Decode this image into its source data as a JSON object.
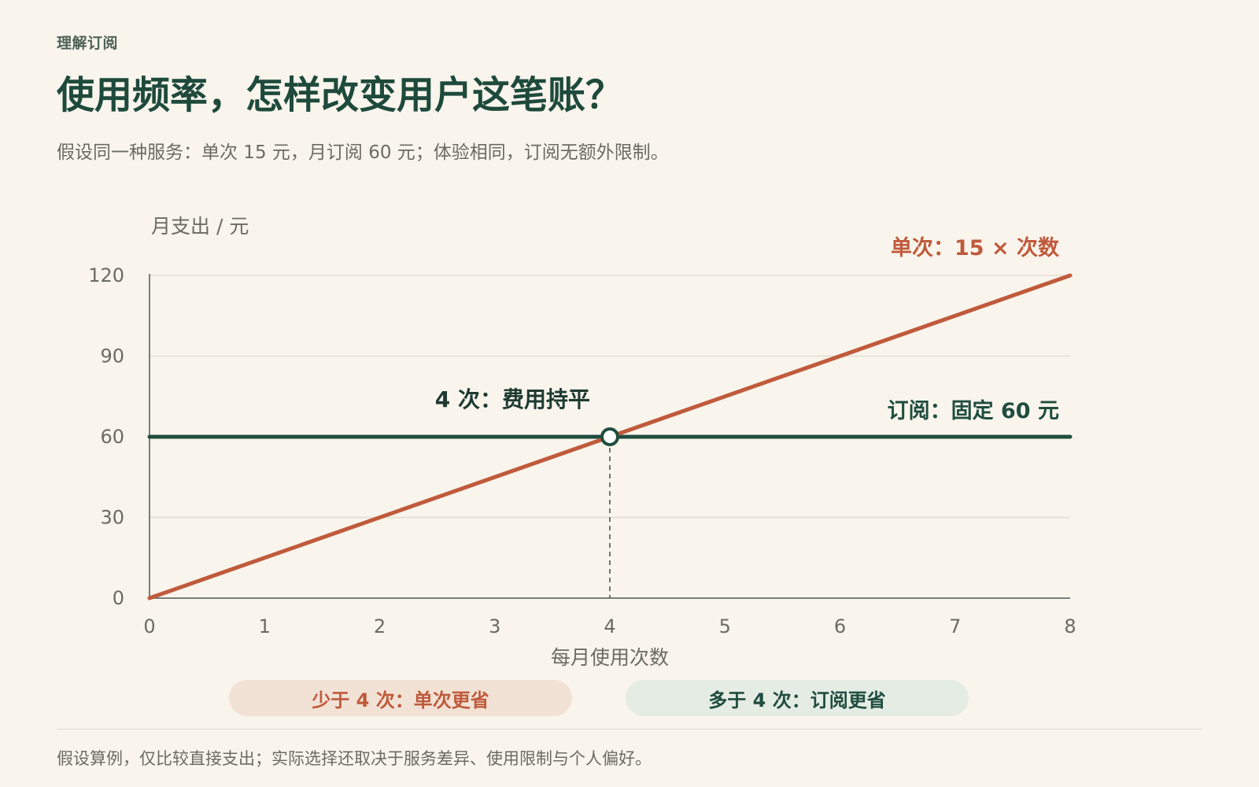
{
  "header": {
    "eyebrow": "理解订阅",
    "title": "使用频率，怎样改变用户这笔账？",
    "subtitle": "假设同一种服务：单次 15 元，月订阅 60 元；体验相同，订阅无额外限制。"
  },
  "chart_data": {
    "type": "line",
    "title": "使用频率，怎样改变用户这笔账？",
    "xlabel": "每月使用次数",
    "ylabel": "月支出 / 元",
    "xlim": [
      0,
      8
    ],
    "ylim": [
      0,
      120
    ],
    "x_ticks": [
      0,
      1,
      2,
      3,
      4,
      5,
      6,
      7,
      8
    ],
    "y_ticks": [
      0,
      30,
      60,
      90,
      120
    ],
    "grid": true,
    "series": [
      {
        "name": "单次：15 × 次数",
        "color": "#c05a3c",
        "x": [
          0,
          8
        ],
        "y": [
          0,
          120
        ]
      },
      {
        "name": "订阅：固定 60 元",
        "color": "#1f4d3f",
        "x": [
          0,
          8
        ],
        "y": [
          60,
          60
        ]
      }
    ],
    "annotations": [
      {
        "text": "4 次：费用持平",
        "x": 4,
        "y": 60
      }
    ]
  },
  "legend": {
    "left": "少于 4 次：单次更省",
    "right": "多于 4 次：订阅更省"
  },
  "footnote": "假设算例，仅比较直接支出；实际选择还取决于服务差异、使用限制与个人偏好。",
  "colors": {
    "accent_orange": "#c05a3c",
    "accent_green": "#1f4d3f",
    "background": "#f9f5ec"
  }
}
